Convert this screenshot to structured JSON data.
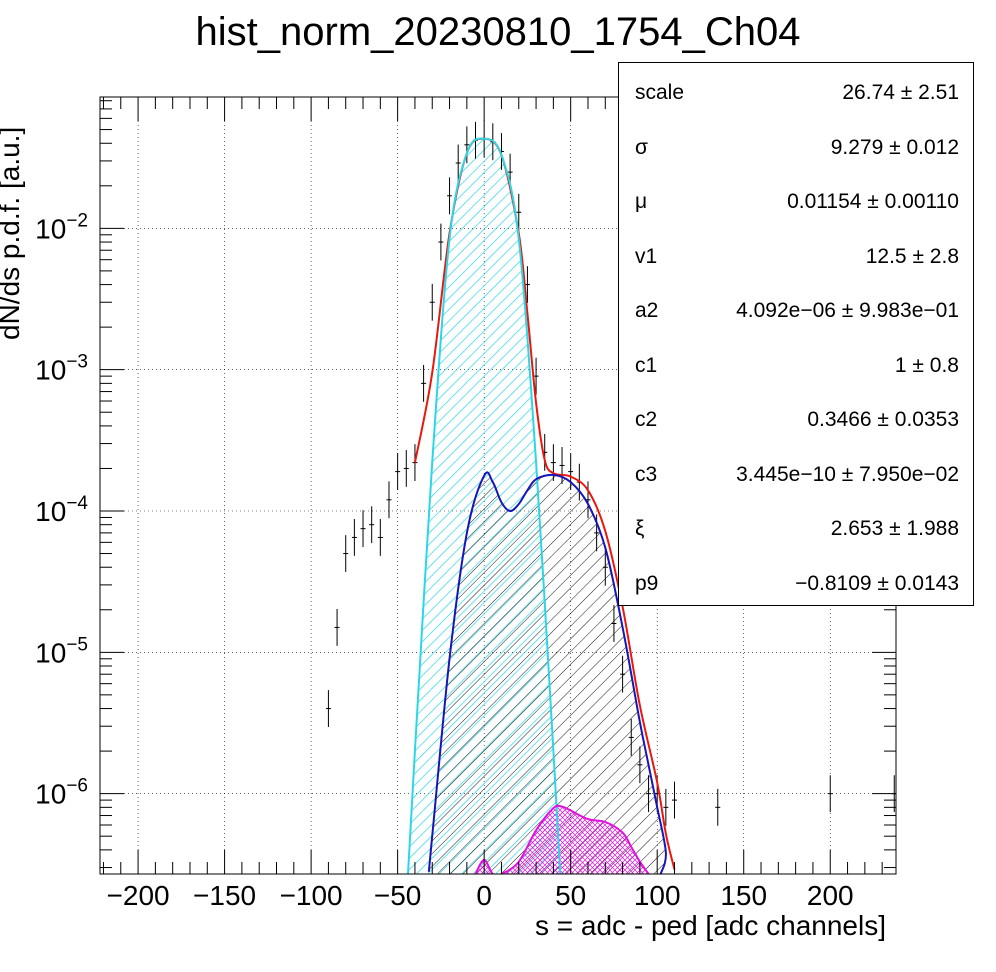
{
  "chart_data": {
    "type": "histogram-with-fit",
    "title": "hist_norm_20230810_1754_Ch04",
    "xlabel": "s = adc - ped [adc channels]",
    "ylabel": "dN/ds p.d.f. [a.u.]",
    "xlim": [
      -222,
      238
    ],
    "ylim": [
      2.7e-07,
      0.085
    ],
    "yscale": "log",
    "grid": true,
    "x_ticks": [
      -200,
      -150,
      -100,
      -50,
      0,
      50,
      100,
      150,
      200
    ],
    "x_tick_labels": [
      "−200",
      "−150",
      "−100",
      "−50",
      "0",
      "50",
      "100",
      "150",
      "200"
    ],
    "y_ticks": [
      1e-06,
      1e-05,
      0.0001,
      0.001,
      0.01
    ],
    "y_tick_labels": [
      {
        "base": "10",
        "exp": "−6"
      },
      {
        "base": "10",
        "exp": "−5"
      },
      {
        "base": "10",
        "exp": "−4"
      },
      {
        "base": "10",
        "exp": "−3"
      },
      {
        "base": "10",
        "exp": "−2"
      }
    ],
    "histogram": {
      "x": [
        -90,
        -85,
        -80,
        -75,
        -70,
        -65,
        -60,
        -55,
        -50,
        -45,
        -40,
        -35,
        -30,
        -25,
        -20,
        -15,
        -10,
        -5,
        0,
        5,
        10,
        15,
        20,
        25,
        30,
        35,
        40,
        45,
        50,
        55,
        60,
        65,
        70,
        75,
        80,
        85,
        90,
        95,
        100,
        105,
        110,
        135,
        200,
        237
      ],
      "y": [
        4e-06,
        1.5e-05,
        5e-05,
        6.5e-05,
        7.5e-05,
        8e-05,
        6.5e-05,
        0.00012,
        0.00019,
        0.0002,
        0.00022,
        0.0008,
        0.003,
        0.008,
        0.017,
        0.029,
        0.039,
        0.042,
        0.043,
        0.041,
        0.035,
        0.025,
        0.013,
        0.004,
        0.0009,
        0.00026,
        0.00022,
        0.00021,
        0.00019,
        0.00016,
        0.00012,
        7e-05,
        4e-05,
        1.6e-05,
        7e-06,
        2.5e-06,
        1.6e-06,
        1e-06,
        1e-06,
        8e-07,
        9e-07,
        8e-07,
        1e-06,
        1e-06
      ]
    },
    "series": [
      {
        "color": "#e8180f",
        "x": [
          -40,
          -30,
          -20,
          -10,
          0,
          10,
          20,
          25,
          30,
          35,
          40,
          50,
          60,
          70,
          80,
          90,
          100,
          105,
          110
        ],
        "y": [
          0.00022,
          0.00095,
          0.0092,
          0.034,
          0.043,
          0.033,
          0.0092,
          0.0025,
          0.00058,
          0.00023,
          0.000185,
          0.000175,
          0.00014,
          7.2e-05,
          2.1e-05,
          4.2e-06,
          1.2e-06,
          5.2e-07,
          2.9e-07
        ]
      },
      {
        "color": "#2dd6e6",
        "x": [
          -44,
          -40,
          -30,
          -20,
          -10,
          0,
          10,
          20,
          30,
          40,
          44
        ],
        "y": [
          2.7e-07,
          2e-06,
          0.00022,
          0.0084,
          0.034,
          0.043,
          0.033,
          0.0084,
          0.00022,
          2e-06,
          2.7e-07
        ],
        "fill": "hatch-cyan"
      },
      {
        "color": "#1616b8",
        "x": [
          -32,
          -30,
          -20,
          -10,
          0,
          5,
          10,
          15,
          20,
          25,
          30,
          40,
          50,
          60,
          70,
          80,
          90,
          95,
          100,
          105,
          102
        ],
        "y": [
          2.8e-07,
          5e-07,
          9e-06,
          7e-05,
          0.000178,
          0.00016,
          0.000115,
          0.0001,
          0.000112,
          0.00014,
          0.000168,
          0.00018,
          0.00016,
          0.000112,
          5.5e-05,
          1.5e-05,
          3.2e-06,
          1.6e-06,
          8e-07,
          3.8e-07,
          2.7e-07
        ],
        "fill": "hatch-black"
      },
      {
        "color": "#e012e0",
        "x": [
          -5,
          0,
          5,
          10,
          20,
          30,
          40,
          45,
          50,
          60,
          70,
          80,
          85,
          90,
          95
        ],
        "y": [
          2.7e-07,
          3.4e-07,
          2.7e-07,
          2.7e-07,
          3.3e-07,
          5.5e-07,
          7.9e-07,
          8.1e-07,
          7.6e-07,
          6.6e-07,
          6.3e-07,
          5.3e-07,
          4.2e-07,
          3.3e-07,
          2.7e-07
        ],
        "fill": "hatch-magenta"
      }
    ],
    "stats": [
      {
        "name": "scale",
        "value": "26.74 ± 2.51"
      },
      {
        "name": "σ",
        "value": "9.279 ± 0.012"
      },
      {
        "name": "μ",
        "value": "0.01154 ± 0.00110"
      },
      {
        "name": "v1",
        "value": "12.5 ± 2.8"
      },
      {
        "name": "a2",
        "value": "4.092e−06 ± 9.983e−01"
      },
      {
        "name": "c1",
        "value": "1 ± 0.8"
      },
      {
        "name": "c2",
        "value": "0.3466 ± 0.0353"
      },
      {
        "name": "c3",
        "value": "3.445e−10 ± 7.950e−02"
      },
      {
        "name": "ξ",
        "value": "2.653 ± 1.988"
      },
      {
        "name": "p9",
        "value": "−0.8109 ± 0.0143"
      }
    ]
  }
}
